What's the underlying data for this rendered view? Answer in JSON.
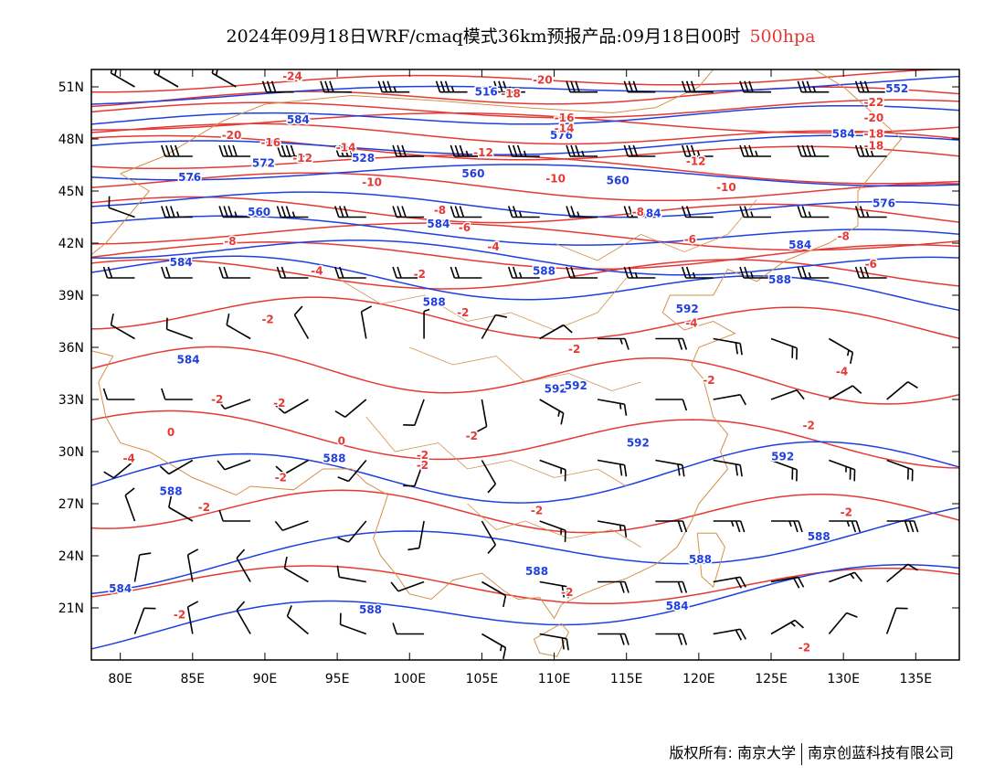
{
  "title": {
    "main": "2024年09月18日WRF/cmaq模式36km预报产品:09月18日00时",
    "level": "500hpa"
  },
  "axes": {
    "lat_labels": [
      "51N",
      "48N",
      "45N",
      "42N",
      "39N",
      "36N",
      "33N",
      "30N",
      "27N",
      "24N",
      "21N"
    ],
    "lon_labels": [
      "80E",
      "85E",
      "90E",
      "95E",
      "100E",
      "105E",
      "110E",
      "115E",
      "120E",
      "125E",
      "130E",
      "135E"
    ]
  },
  "colors": {
    "height": "#1f3fe0",
    "temperature": "#e53935",
    "boundary": "#d2914b",
    "wind": "#000000"
  },
  "labels": {
    "height": [
      {
        "text": "552",
        "lon": 133.7,
        "lat": 50.9
      },
      {
        "text": "584",
        "lon": 92.3,
        "lat": 49.1
      },
      {
        "text": "516",
        "lon": 105.3,
        "lat": 50.7
      },
      {
        "text": "576",
        "lon": 110.5,
        "lat": 48.2
      },
      {
        "text": "584",
        "lon": 130,
        "lat": 48.3
      },
      {
        "text": "572",
        "lon": 89.9,
        "lat": 46.6
      },
      {
        "text": "528",
        "lon": 96.8,
        "lat": 46.9
      },
      {
        "text": "576",
        "lon": 84.8,
        "lat": 45.8
      },
      {
        "text": "560",
        "lon": 104.4,
        "lat": 46
      },
      {
        "text": "560",
        "lon": 114.4,
        "lat": 45.6
      },
      {
        "text": "560",
        "lon": 89.6,
        "lat": 43.8
      },
      {
        "text": "584",
        "lon": 102,
        "lat": 43.1
      },
      {
        "text": "584",
        "lon": 116.6,
        "lat": 43.7
      },
      {
        "text": "576",
        "lon": 132.8,
        "lat": 44.3
      },
      {
        "text": "584",
        "lon": 84.2,
        "lat": 40.9
      },
      {
        "text": "584",
        "lon": 127,
        "lat": 41.9
      },
      {
        "text": "588",
        "lon": 109.3,
        "lat": 40.4
      },
      {
        "text": "588",
        "lon": 125.6,
        "lat": 39.9
      },
      {
        "text": "588",
        "lon": 101.7,
        "lat": 38.6
      },
      {
        "text": "592",
        "lon": 119.2,
        "lat": 38.2
      },
      {
        "text": "584",
        "lon": 84.7,
        "lat": 35.3
      },
      {
        "text": "592",
        "lon": 110.1,
        "lat": 33.6
      },
      {
        "text": "592",
        "lon": 111.5,
        "lat": 33.8
      },
      {
        "text": "592",
        "lon": 115.8,
        "lat": 30.5
      },
      {
        "text": "588",
        "lon": 94.8,
        "lat": 29.6
      },
      {
        "text": "592",
        "lon": 125.8,
        "lat": 29.7
      },
      {
        "text": "588",
        "lon": 83.5,
        "lat": 27.7
      },
      {
        "text": "588",
        "lon": 128.3,
        "lat": 25.1
      },
      {
        "text": "588",
        "lon": 120.1,
        "lat": 23.8
      },
      {
        "text": "588",
        "lon": 108.8,
        "lat": 23.1
      },
      {
        "text": "584",
        "lon": 80,
        "lat": 22.1
      },
      {
        "text": "588",
        "lon": 97.3,
        "lat": 20.9
      },
      {
        "text": "584",
        "lon": 118.5,
        "lat": 21.1
      }
    ],
    "temperature": [
      {
        "text": "-24",
        "lon": 91.9,
        "lat": 51.6
      },
      {
        "text": "-20",
        "lon": 109.2,
        "lat": 51.4
      },
      {
        "text": "-18",
        "lon": 107,
        "lat": 50.6
      },
      {
        "text": "-22",
        "lon": 132.1,
        "lat": 50.1
      },
      {
        "text": "-20",
        "lon": 132.1,
        "lat": 49.2
      },
      {
        "text": "-16",
        "lon": 110.7,
        "lat": 49.2
      },
      {
        "text": "-14",
        "lon": 110.7,
        "lat": 48.6
      },
      {
        "text": "-18",
        "lon": 132.1,
        "lat": 48.3
      },
      {
        "text": "-20",
        "lon": 87.7,
        "lat": 48.2
      },
      {
        "text": "-16",
        "lon": 90.4,
        "lat": 47.8
      },
      {
        "text": "-18",
        "lon": 132.1,
        "lat": 47.6
      },
      {
        "text": "-14",
        "lon": 95.6,
        "lat": 47.5
      },
      {
        "text": "-12",
        "lon": 92.6,
        "lat": 46.9
      },
      {
        "text": "-12",
        "lon": 105.1,
        "lat": 47.2
      },
      {
        "text": "-12",
        "lon": 119.8,
        "lat": 46.7
      },
      {
        "text": "-10",
        "lon": 97.4,
        "lat": 45.5
      },
      {
        "text": "-10",
        "lon": 110.1,
        "lat": 45.7
      },
      {
        "text": "-10",
        "lon": 121.9,
        "lat": 45.2
      },
      {
        "text": "-8",
        "lon": 102.1,
        "lat": 43.9
      },
      {
        "text": "-8",
        "lon": 115.8,
        "lat": 43.8
      },
      {
        "text": "-6",
        "lon": 103.8,
        "lat": 42.9
      },
      {
        "text": "-6",
        "lon": 119.4,
        "lat": 42.2
      },
      {
        "text": "-8",
        "lon": 130,
        "lat": 42.4
      },
      {
        "text": "-8",
        "lon": 87.6,
        "lat": 42.1
      },
      {
        "text": "-4",
        "lon": 105.8,
        "lat": 41.8
      },
      {
        "text": "-6",
        "lon": 131.9,
        "lat": 40.8
      },
      {
        "text": "-4",
        "lon": 93.6,
        "lat": 40.4
      },
      {
        "text": "-2",
        "lon": 100.7,
        "lat": 40.2
      },
      {
        "text": "-2",
        "lon": 103.7,
        "lat": 38
      },
      {
        "text": "-2",
        "lon": 90.2,
        "lat": 37.6
      },
      {
        "text": "-4",
        "lon": 119.5,
        "lat": 37.4
      },
      {
        "text": "-2",
        "lon": 111.4,
        "lat": 35.9
      },
      {
        "text": "-4",
        "lon": 129.9,
        "lat": 34.6
      },
      {
        "text": "-2",
        "lon": 120.7,
        "lat": 34.1
      },
      {
        "text": "-2",
        "lon": 86.7,
        "lat": 33
      },
      {
        "text": "-2",
        "lon": 91,
        "lat": 32.8
      },
      {
        "text": "0",
        "lon": 83.5,
        "lat": 31.1
      },
      {
        "text": "-2",
        "lon": 127.6,
        "lat": 31.5
      },
      {
        "text": "-2",
        "lon": 104.3,
        "lat": 30.9
      },
      {
        "text": "0",
        "lon": 95.3,
        "lat": 30.6
      },
      {
        "text": "-4",
        "lon": 80.6,
        "lat": 29.6
      },
      {
        "text": "-2",
        "lon": 100.9,
        "lat": 29.8
      },
      {
        "text": "-2",
        "lon": 100.9,
        "lat": 29.2
      },
      {
        "text": "-2",
        "lon": 91.1,
        "lat": 28.5
      },
      {
        "text": "-2",
        "lon": 85.8,
        "lat": 26.8
      },
      {
        "text": "-2",
        "lon": 108.8,
        "lat": 26.6
      },
      {
        "text": "-2",
        "lon": 130.2,
        "lat": 26.5
      },
      {
        "text": "-2",
        "lon": 110.9,
        "lat": 21.9
      },
      {
        "text": "-2",
        "lon": 84.1,
        "lat": 20.6
      },
      {
        "text": "-2",
        "lon": 127.3,
        "lat": 18.7
      }
    ]
  },
  "wind_barbs": [
    {
      "lon": 81,
      "lat": 51,
      "dir": 300,
      "spd": 15
    },
    {
      "lon": 84,
      "lat": 51,
      "dir": 300,
      "spd": 15
    },
    {
      "lon": 88,
      "lat": 51,
      "dir": 300,
      "spd": 15
    },
    {
      "lon": 92,
      "lat": 50.7,
      "dir": 270,
      "spd": 30
    },
    {
      "lon": 96,
      "lat": 50.7,
      "dir": 270,
      "spd": 30
    },
    {
      "lon": 100,
      "lat": 50.7,
      "dir": 270,
      "spd": 35
    },
    {
      "lon": 104,
      "lat": 50.7,
      "dir": 270,
      "spd": 35
    },
    {
      "lon": 108,
      "lat": 50.7,
      "dir": 270,
      "spd": 35
    },
    {
      "lon": 113,
      "lat": 50.7,
      "dir": 270,
      "spd": 30
    },
    {
      "lon": 117,
      "lat": 50.7,
      "dir": 270,
      "spd": 30
    },
    {
      "lon": 121,
      "lat": 50.7,
      "dir": 270,
      "spd": 30
    },
    {
      "lon": 125,
      "lat": 50.7,
      "dir": 270,
      "spd": 30
    },
    {
      "lon": 129,
      "lat": 50.7,
      "dir": 270,
      "spd": 35
    },
    {
      "lon": 133,
      "lat": 50.7,
      "dir": 270,
      "spd": 30
    },
    {
      "lon": 85,
      "lat": 47,
      "dir": 270,
      "spd": 40
    },
    {
      "lon": 89,
      "lat": 47,
      "dir": 270,
      "spd": 40
    },
    {
      "lon": 93,
      "lat": 47,
      "dir": 270,
      "spd": 40
    },
    {
      "lon": 97,
      "lat": 47,
      "dir": 270,
      "spd": 35
    },
    {
      "lon": 101,
      "lat": 47,
      "dir": 270,
      "spd": 30
    },
    {
      "lon": 105,
      "lat": 47,
      "dir": 270,
      "spd": 35
    },
    {
      "lon": 109,
      "lat": 47,
      "dir": 270,
      "spd": 35
    },
    {
      "lon": 113,
      "lat": 47,
      "dir": 270,
      "spd": 35
    },
    {
      "lon": 117,
      "lat": 47,
      "dir": 270,
      "spd": 30
    },
    {
      "lon": 121,
      "lat": 47,
      "dir": 270,
      "spd": 35
    },
    {
      "lon": 125,
      "lat": 47,
      "dir": 270,
      "spd": 35
    },
    {
      "lon": 129,
      "lat": 47,
      "dir": 270,
      "spd": 40
    },
    {
      "lon": 133,
      "lat": 47,
      "dir": 270,
      "spd": 35
    },
    {
      "lon": 81,
      "lat": 43.5,
      "dir": 290,
      "spd": 10
    },
    {
      "lon": 85,
      "lat": 43.5,
      "dir": 270,
      "spd": 35
    },
    {
      "lon": 89,
      "lat": 43.5,
      "dir": 270,
      "spd": 35
    },
    {
      "lon": 93,
      "lat": 43.5,
      "dir": 270,
      "spd": 35
    },
    {
      "lon": 97,
      "lat": 43.5,
      "dir": 270,
      "spd": 30
    },
    {
      "lon": 101,
      "lat": 43.5,
      "dir": 270,
      "spd": 30
    },
    {
      "lon": 105,
      "lat": 43.5,
      "dir": 270,
      "spd": 30
    },
    {
      "lon": 109,
      "lat": 43.5,
      "dir": 270,
      "spd": 25
    },
    {
      "lon": 113,
      "lat": 43.5,
      "dir": 270,
      "spd": 25
    },
    {
      "lon": 117,
      "lat": 43.5,
      "dir": 270,
      "spd": 20
    },
    {
      "lon": 121,
      "lat": 43.5,
      "dir": 270,
      "spd": 20
    },
    {
      "lon": 125,
      "lat": 43.5,
      "dir": 270,
      "spd": 25
    },
    {
      "lon": 129,
      "lat": 43.5,
      "dir": 270,
      "spd": 25
    },
    {
      "lon": 133,
      "lat": 43.5,
      "dir": 270,
      "spd": 25
    },
    {
      "lon": 81,
      "lat": 40,
      "dir": 270,
      "spd": 20
    },
    {
      "lon": 85,
      "lat": 40,
      "dir": 270,
      "spd": 20
    },
    {
      "lon": 89,
      "lat": 40,
      "dir": 270,
      "spd": 20
    },
    {
      "lon": 93,
      "lat": 40,
      "dir": 270,
      "spd": 20
    },
    {
      "lon": 97,
      "lat": 40,
      "dir": 270,
      "spd": 20
    },
    {
      "lon": 101,
      "lat": 40,
      "dir": 270,
      "spd": 20
    },
    {
      "lon": 105,
      "lat": 40,
      "dir": 270,
      "spd": 20
    },
    {
      "lon": 109,
      "lat": 40,
      "dir": 270,
      "spd": 25
    },
    {
      "lon": 113,
      "lat": 40,
      "dir": 270,
      "spd": 20
    },
    {
      "lon": 117,
      "lat": 40,
      "dir": 270,
      "spd": 25
    },
    {
      "lon": 121,
      "lat": 40,
      "dir": 270,
      "spd": 25
    },
    {
      "lon": 125,
      "lat": 40,
      "dir": 270,
      "spd": 25
    },
    {
      "lon": 129,
      "lat": 40,
      "dir": 270,
      "spd": 25
    },
    {
      "lon": 133,
      "lat": 40,
      "dir": 270,
      "spd": 30
    },
    {
      "lon": 81,
      "lat": 36.5,
      "dir": 300,
      "spd": 10
    },
    {
      "lon": 85,
      "lat": 36.5,
      "dir": 290,
      "spd": 10
    },
    {
      "lon": 89,
      "lat": 36.5,
      "dir": 300,
      "spd": 10
    },
    {
      "lon": 93,
      "lat": 36.5,
      "dir": 330,
      "spd": 10
    },
    {
      "lon": 97,
      "lat": 36.5,
      "dir": 350,
      "spd": 10
    },
    {
      "lon": 101,
      "lat": 36.5,
      "dir": 0,
      "spd": 5
    },
    {
      "lon": 105,
      "lat": 36.5,
      "dir": 30,
      "spd": 10
    },
    {
      "lon": 109,
      "lat": 36.5,
      "dir": 60,
      "spd": 10
    },
    {
      "lon": 113,
      "lat": 36.5,
      "dir": 90,
      "spd": 15
    },
    {
      "lon": 117,
      "lat": 36.5,
      "dir": 90,
      "spd": 20
    },
    {
      "lon": 121,
      "lat": 36.5,
      "dir": 100,
      "spd": 20
    },
    {
      "lon": 125,
      "lat": 36.5,
      "dir": 110,
      "spd": 20
    },
    {
      "lon": 129,
      "lat": 36.5,
      "dir": 120,
      "spd": 15
    },
    {
      "lon": 81,
      "lat": 33,
      "dir": 270,
      "spd": 10
    },
    {
      "lon": 85,
      "lat": 33,
      "dir": 270,
      "spd": 10
    },
    {
      "lon": 89,
      "lat": 33,
      "dir": 250,
      "spd": 10
    },
    {
      "lon": 93,
      "lat": 33,
      "dir": 240,
      "spd": 10
    },
    {
      "lon": 97,
      "lat": 33,
      "dir": 230,
      "spd": 10
    },
    {
      "lon": 101,
      "lat": 33,
      "dir": 200,
      "spd": 10
    },
    {
      "lon": 105,
      "lat": 33,
      "dir": 170,
      "spd": 10
    },
    {
      "lon": 109,
      "lat": 33,
      "dir": 120,
      "spd": 15
    },
    {
      "lon": 113,
      "lat": 33,
      "dir": 100,
      "spd": 15
    },
    {
      "lon": 117,
      "lat": 33,
      "dir": 90,
      "spd": 10
    },
    {
      "lon": 121,
      "lat": 33,
      "dir": 80,
      "spd": 10
    },
    {
      "lon": 125,
      "lat": 33,
      "dir": 70,
      "spd": 10
    },
    {
      "lon": 129,
      "lat": 33,
      "dir": 60,
      "spd": 10
    },
    {
      "lon": 133,
      "lat": 33,
      "dir": 50,
      "spd": 10
    },
    {
      "lon": 81,
      "lat": 29.5,
      "dir": 230,
      "spd": 10
    },
    {
      "lon": 85,
      "lat": 29.5,
      "dir": 240,
      "spd": 10
    },
    {
      "lon": 89,
      "lat": 29.5,
      "dir": 250,
      "spd": 10
    },
    {
      "lon": 93,
      "lat": 29.5,
      "dir": 240,
      "spd": 10
    },
    {
      "lon": 97,
      "lat": 29.5,
      "dir": 220,
      "spd": 10
    },
    {
      "lon": 101,
      "lat": 29.5,
      "dir": 200,
      "spd": 10
    },
    {
      "lon": 105,
      "lat": 29.5,
      "dir": 150,
      "spd": 10
    },
    {
      "lon": 109,
      "lat": 29.5,
      "dir": 110,
      "spd": 15
    },
    {
      "lon": 113,
      "lat": 29.5,
      "dir": 100,
      "spd": 20
    },
    {
      "lon": 117,
      "lat": 29.5,
      "dir": 100,
      "spd": 20
    },
    {
      "lon": 121,
      "lat": 29.5,
      "dir": 100,
      "spd": 20
    },
    {
      "lon": 125,
      "lat": 29.5,
      "dir": 110,
      "spd": 20
    },
    {
      "lon": 129,
      "lat": 29.5,
      "dir": 110,
      "spd": 25
    },
    {
      "lon": 133,
      "lat": 29.5,
      "dir": 110,
      "spd": 20
    },
    {
      "lon": 81,
      "lat": 26,
      "dir": 340,
      "spd": 10
    },
    {
      "lon": 85,
      "lat": 26,
      "dir": 300,
      "spd": 10
    },
    {
      "lon": 89,
      "lat": 26,
      "dir": 270,
      "spd": 10
    },
    {
      "lon": 93,
      "lat": 26,
      "dir": 250,
      "spd": 10
    },
    {
      "lon": 97,
      "lat": 26,
      "dir": 220,
      "spd": 10
    },
    {
      "lon": 101,
      "lat": 26,
      "dir": 190,
      "spd": 10
    },
    {
      "lon": 105,
      "lat": 26,
      "dir": 150,
      "spd": 10
    },
    {
      "lon": 109,
      "lat": 26,
      "dir": 110,
      "spd": 15
    },
    {
      "lon": 113,
      "lat": 26,
      "dir": 100,
      "spd": 15
    },
    {
      "lon": 117,
      "lat": 26,
      "dir": 90,
      "spd": 20
    },
    {
      "lon": 121,
      "lat": 26,
      "dir": 90,
      "spd": 25
    },
    {
      "lon": 125,
      "lat": 26,
      "dir": 90,
      "spd": 25
    },
    {
      "lon": 129,
      "lat": 26,
      "dir": 90,
      "spd": 25
    },
    {
      "lon": 133,
      "lat": 26,
      "dir": 90,
      "spd": 30
    },
    {
      "lon": 81,
      "lat": 22.5,
      "dir": 10,
      "spd": 10
    },
    {
      "lon": 85,
      "lat": 22.5,
      "dir": 350,
      "spd": 10
    },
    {
      "lon": 89,
      "lat": 22.5,
      "dir": 330,
      "spd": 10
    },
    {
      "lon": 93,
      "lat": 22.5,
      "dir": 300,
      "spd": 10
    },
    {
      "lon": 97,
      "lat": 22.5,
      "dir": 280,
      "spd": 10
    },
    {
      "lon": 101,
      "lat": 22.5,
      "dir": 250,
      "spd": 10
    },
    {
      "lon": 105,
      "lat": 22.5,
      "dir": 120,
      "spd": 10
    },
    {
      "lon": 109,
      "lat": 22.5,
      "dir": 100,
      "spd": 20
    },
    {
      "lon": 113,
      "lat": 22.5,
      "dir": 90,
      "spd": 20
    },
    {
      "lon": 117,
      "lat": 22.5,
      "dir": 90,
      "spd": 20
    },
    {
      "lon": 121,
      "lat": 22.5,
      "dir": 80,
      "spd": 20
    },
    {
      "lon": 125,
      "lat": 22.5,
      "dir": 80,
      "spd": 20
    },
    {
      "lon": 129,
      "lat": 22.5,
      "dir": 70,
      "spd": 15
    },
    {
      "lon": 133,
      "lat": 22.5,
      "dir": 50,
      "spd": 10
    },
    {
      "lon": 81,
      "lat": 19.5,
      "dir": 20,
      "spd": 10
    },
    {
      "lon": 85,
      "lat": 19.5,
      "dir": 350,
      "spd": 10
    },
    {
      "lon": 89,
      "lat": 19.5,
      "dir": 330,
      "spd": 10
    },
    {
      "lon": 93,
      "lat": 19.5,
      "dir": 310,
      "spd": 10
    },
    {
      "lon": 97,
      "lat": 19.5,
      "dir": 290,
      "spd": 10
    },
    {
      "lon": 101,
      "lat": 19.5,
      "dir": 270,
      "spd": 10
    },
    {
      "lon": 105,
      "lat": 19.5,
      "dir": 120,
      "spd": 15
    },
    {
      "lon": 109,
      "lat": 19.5,
      "dir": 100,
      "spd": 20
    },
    {
      "lon": 113,
      "lat": 19.5,
      "dir": 90,
      "spd": 20
    },
    {
      "lon": 117,
      "lat": 19.5,
      "dir": 90,
      "spd": 20
    },
    {
      "lon": 121,
      "lat": 19.5,
      "dir": 80,
      "spd": 20
    },
    {
      "lon": 125,
      "lat": 19.5,
      "dir": 60,
      "spd": 15
    },
    {
      "lon": 129,
      "lat": 19.5,
      "dir": 40,
      "spd": 10
    },
    {
      "lon": 133,
      "lat": 19.5,
      "dir": 20,
      "spd": 10
    }
  ],
  "footer": {
    "copyright": "版权所有: 南京大学",
    "company": "南京创蓝科技有限公司"
  }
}
